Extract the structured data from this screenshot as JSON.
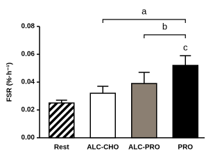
{
  "chart_data": {
    "type": "bar",
    "y_label": "FSR (%·h⁻¹)",
    "categories": [
      "Rest",
      "ALC-CHO",
      "ALC-PRO",
      "PRO"
    ],
    "values": [
      0.025,
      0.032,
      0.039,
      0.052
    ],
    "errors": [
      0.002,
      0.005,
      0.008,
      0.007
    ],
    "colors": [
      "hatch",
      "#ffffff",
      "#8b7f72",
      "#000000"
    ],
    "ylim": [
      0,
      0.08
    ],
    "yticks": [
      {
        "value": 0,
        "label": "0.00"
      },
      0.02,
      0.04,
      0.06,
      0.08
    ],
    "annotations": [
      {
        "text": "a",
        "from": 1,
        "to": 3
      },
      {
        "text": "b",
        "from": 2,
        "to": 3
      },
      {
        "text": "c",
        "from": 3,
        "to": 3
      }
    ]
  }
}
